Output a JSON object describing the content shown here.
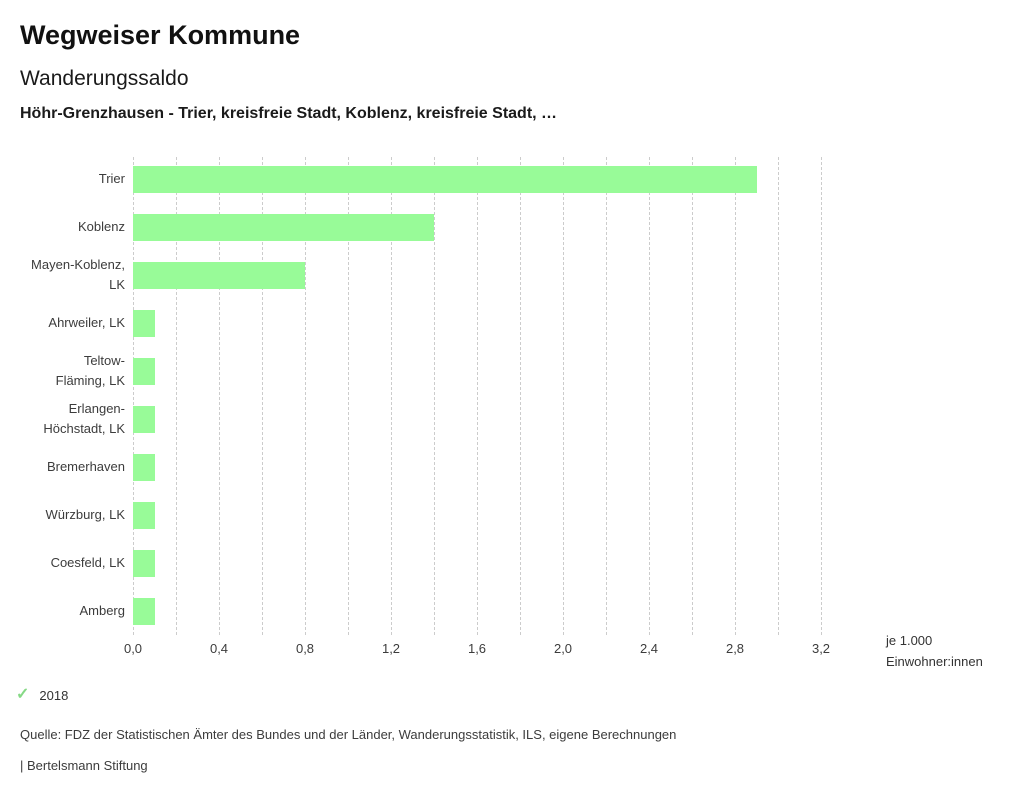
{
  "header": {
    "title": "Wegweiser Kommune",
    "subtitle": "Wanderungssaldo",
    "description": "Höhr-Grenzhausen - Trier, kreisfreie Stadt, Koblenz, kreisfreie Stadt, …"
  },
  "chart_data": {
    "type": "bar",
    "orientation": "horizontal",
    "title": "Wanderungssaldo",
    "categories": [
      "Trier",
      "Koblenz",
      "Mayen-Koblenz, LK",
      "Ahrweiler, LK",
      "Teltow-Fläming, LK",
      "Erlangen-Höchstadt, LK",
      "Bremerhaven",
      "Würzburg, LK",
      "Coesfeld, LK",
      "Amberg"
    ],
    "category_lines": [
      [
        "Trier"
      ],
      [
        "Koblenz"
      ],
      [
        "Mayen-Koblenz,",
        "LK"
      ],
      [
        "Ahrweiler, LK"
      ],
      [
        "Teltow-",
        "Fläming, LK"
      ],
      [
        "Erlangen-",
        "Höchstadt, LK"
      ],
      [
        "Bremerhaven"
      ],
      [
        "Würzburg, LK"
      ],
      [
        "Coesfeld, LK"
      ],
      [
        "Amberg"
      ]
    ],
    "series": [
      {
        "name": "2018",
        "values": [
          2.9,
          1.4,
          0.8,
          0.1,
          0.1,
          0.1,
          0.1,
          0.1,
          0.1,
          0.1
        ]
      }
    ],
    "xlabel": "je 1.000 Einwohner:innen",
    "unit_label_lines": [
      "je 1.000",
      "Einwohner:innen"
    ],
    "xlim": [
      0,
      3.2
    ],
    "tick_values": [
      0,
      0.4,
      0.8,
      1.2,
      1.6,
      2.0,
      2.4,
      2.8,
      3.2
    ],
    "tick_labels": [
      "0,0",
      "0,4",
      "0,8",
      "1,2",
      "1,6",
      "2,0",
      "2,4",
      "2,8",
      "3,2"
    ],
    "grid_interval": 0.2,
    "grid": true,
    "bar_color": "#98fb98",
    "grid_color": "#cccccc",
    "legend_position": "bottom-left"
  },
  "legend": {
    "check_icon": "✓",
    "check_color": "#86d986",
    "year": "2018"
  },
  "footer": {
    "source": "Quelle: FDZ der Statistischen Ämter des Bundes und der Länder, Wanderungsstatistik, ILS, eigene Berechnungen",
    "brand": "| Bertelsmann Stiftung"
  }
}
